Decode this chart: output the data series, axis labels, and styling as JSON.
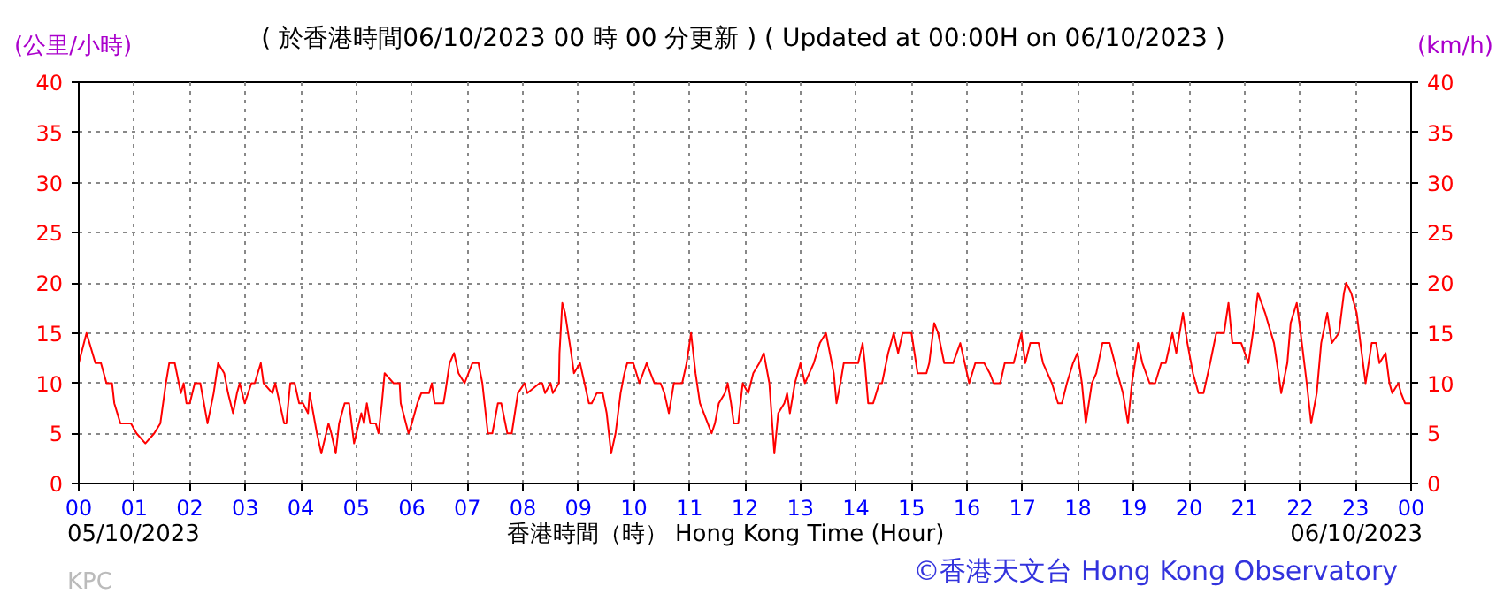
{
  "chart_data": {
    "type": "line",
    "title": "( 於香港時間06/10/2023 00 時 00 分更新 ) ( Updated at 00:00H on 06/10/2023 )",
    "xlabel": "香港時間（時） Hong Kong Time (Hour)",
    "ylabel": "(公里/小時)",
    "y2label": "(km/h)",
    "annotations": [
      "05/10/2023",
      "06/10/2023",
      "KPC",
      "©香港天文台 Hong Kong Observatory"
    ],
    "xlim": [
      0,
      24
    ],
    "xticks": [
      {
        "value": 0,
        "label": "00"
      },
      {
        "value": 1,
        "label": "01"
      },
      {
        "value": 2,
        "label": "02"
      },
      {
        "value": 3,
        "label": "03"
      },
      {
        "value": 4,
        "label": "04"
      },
      {
        "value": 5,
        "label": "05"
      },
      {
        "value": 6,
        "label": "06"
      },
      {
        "value": 7,
        "label": "07"
      },
      {
        "value": 8,
        "label": "08"
      },
      {
        "value": 9,
        "label": "09"
      },
      {
        "value": 10,
        "label": "10"
      },
      {
        "value": 11,
        "label": "11"
      },
      {
        "value": 12,
        "label": "12"
      },
      {
        "value": 13,
        "label": "13"
      },
      {
        "value": 14,
        "label": "14"
      },
      {
        "value": 15,
        "label": "15"
      },
      {
        "value": 16,
        "label": "16"
      },
      {
        "value": 17,
        "label": "17"
      },
      {
        "value": 18,
        "label": "18"
      },
      {
        "value": 19,
        "label": "19"
      },
      {
        "value": 20,
        "label": "20"
      },
      {
        "value": 21,
        "label": "21"
      },
      {
        "value": 22,
        "label": "22"
      },
      {
        "value": 23,
        "label": "23"
      },
      {
        "value": 24,
        "label": "00"
      }
    ],
    "ylim": [
      0,
      40
    ],
    "yticks": [
      0,
      5,
      10,
      15,
      20,
      25,
      30,
      35,
      40
    ],
    "y2lim": [
      0,
      40
    ],
    "y2ticks": [
      0,
      5,
      10,
      15,
      20,
      25,
      30,
      35,
      40
    ],
    "grid": true,
    "series": [
      {
        "color": "#ff0000",
        "x": [
          0,
          0.14,
          0.3,
          0.4,
          0.5,
          0.6,
          0.64,
          0.75,
          0.94,
          1.04,
          1.2,
          1.36,
          1.47,
          1.52,
          1.57,
          1.63,
          1.73,
          1.84,
          1.89,
          1.94,
          2.0,
          2.09,
          2.19,
          2.32,
          2.43,
          2.51,
          2.62,
          2.69,
          2.78,
          2.85,
          2.9,
          2.99,
          3.11,
          3.17,
          3.28,
          3.33,
          3.49,
          3.54,
          3.62,
          3.7,
          3.74,
          3.81,
          3.89,
          3.97,
          4.04,
          4.13,
          4.16,
          4.29,
          4.37,
          4.5,
          4.55,
          4.63,
          4.69,
          4.79,
          4.87,
          4.96,
          5.09,
          5.14,
          5.19,
          5.25,
          5.35,
          5.4,
          5.46,
          5.51,
          5.67,
          5.78,
          5.8,
          5.94,
          6.0,
          6.1,
          6.17,
          6.31,
          6.36,
          6.41,
          6.57,
          6.6,
          6.68,
          6.76,
          6.84,
          6.95,
          7.09,
          7.2,
          7.27,
          7.37,
          7.45,
          7.55,
          7.61,
          7.72,
          7.8,
          7.91,
          8.03,
          8.08,
          8.3,
          8.35,
          8.4,
          8.5,
          8.54,
          8.65,
          8.66,
          8.71,
          8.76,
          8.87,
          8.92,
          9.03,
          9.11,
          9.19,
          9.24,
          9.33,
          9.44,
          9.51,
          9.59,
          9.67,
          9.76,
          9.83,
          9.88,
          9.99,
          10.1,
          10.23,
          10.37,
          10.48,
          10.55,
          10.63,
          10.72,
          10.87,
          10.95,
          11.03,
          11.11,
          11.19,
          11.33,
          11.4,
          11.46,
          11.53,
          11.64,
          11.69,
          11.75,
          11.8,
          11.88,
          11.96,
          12.06,
          12.15,
          12.26,
          12.34,
          12.44,
          12.53,
          12.6,
          12.71,
          12.76,
          12.81,
          12.9,
          13.0,
          13.08,
          13.24,
          13.35,
          13.46,
          13.53,
          13.6,
          13.65,
          13.72,
          13.78,
          14.04,
          14.12,
          14.16,
          14.22,
          14.31,
          14.42,
          14.47,
          14.58,
          14.68,
          14.76,
          14.84,
          15.0,
          15.11,
          15.27,
          15.32,
          15.41,
          15.48,
          15.59,
          15.75,
          15.88,
          16.04,
          16.15,
          16.31,
          16.41,
          16.48,
          16.6,
          16.68,
          16.84,
          16.98,
          17.05,
          17.14,
          17.29,
          17.37,
          17.53,
          17.64,
          17.71,
          17.8,
          17.91,
          17.99,
          18.07,
          18.14,
          18.25,
          18.33,
          18.44,
          18.57,
          18.71,
          18.81,
          18.9,
          18.97,
          19.08,
          19.16,
          19.29,
          19.39,
          19.5,
          19.58,
          19.7,
          19.77,
          19.89,
          19.97,
          20.07,
          20.17,
          20.26,
          20.38,
          20.49,
          20.63,
          20.71,
          20.78,
          20.94,
          21.07,
          21.15,
          21.24,
          21.37,
          21.53,
          21.61,
          21.66,
          21.77,
          21.83,
          21.94,
          22.01,
          22.12,
          22.2,
          22.3,
          22.38,
          22.49,
          22.57,
          22.7,
          22.79,
          22.83,
          22.92,
          23.02,
          23.11,
          23.18,
          23.29,
          23.37,
          23.43,
          23.54,
          23.61,
          23.66,
          23.77,
          23.82,
          23.89,
          24.0
        ],
        "values": [
          12,
          15,
          12,
          12,
          10,
          10,
          8,
          6,
          6,
          5,
          4,
          5,
          6,
          8,
          10,
          12,
          12,
          9,
          10,
          8,
          8,
          10,
          10,
          6,
          9,
          12,
          11,
          9,
          7,
          9,
          10,
          8,
          10,
          10,
          12,
          10,
          9,
          10,
          8,
          6,
          6,
          10,
          10,
          8,
          8,
          7,
          9,
          5,
          3,
          6,
          5,
          3,
          6,
          8,
          8,
          4,
          7,
          6,
          8,
          6,
          6,
          5,
          8,
          11,
          10,
          10,
          8,
          5,
          6,
          8,
          9,
          9,
          10,
          8,
          8,
          9,
          12,
          13,
          11,
          10,
          12,
          12,
          10,
          5,
          5,
          8,
          8,
          5,
          5,
          9,
          10,
          9,
          10,
          10,
          9,
          10,
          9,
          10,
          13,
          18,
          17,
          13,
          11,
          12,
          10,
          8,
          8,
          9,
          9,
          7,
          3,
          5,
          9,
          11,
          12,
          12,
          10,
          12,
          10,
          10,
          9,
          7,
          10,
          10,
          12,
          15,
          11,
          8,
          6,
          5,
          6,
          8,
          9,
          10,
          8,
          6,
          6,
          10,
          9,
          11,
          12,
          13,
          10,
          3,
          7,
          8,
          9,
          7,
          10,
          12,
          10,
          12,
          14,
          15,
          13,
          11,
          8,
          10,
          12,
          12,
          14,
          12,
          8,
          8,
          10,
          10,
          13,
          15,
          13,
          15,
          15,
          11,
          11,
          12,
          16,
          15,
          12,
          12,
          14,
          10,
          12,
          12,
          11,
          10,
          10,
          12,
          12,
          15,
          12,
          14,
          14,
          12,
          10,
          8,
          8,
          10,
          12,
          13,
          10,
          6,
          10,
          11,
          14,
          14,
          11,
          9,
          6,
          10,
          14,
          12,
          10,
          10,
          12,
          12,
          15,
          13,
          17,
          14,
          11,
          9,
          9,
          12,
          15,
          15,
          18,
          14,
          14,
          12,
          15,
          19,
          17,
          14,
          11,
          9,
          12,
          16,
          18,
          15,
          10,
          6,
          9,
          14,
          17,
          14,
          15,
          19,
          20,
          19,
          17,
          13,
          10,
          14,
          14,
          12,
          13,
          10,
          9,
          10,
          9,
          8,
          8
        ]
      }
    ]
  }
}
